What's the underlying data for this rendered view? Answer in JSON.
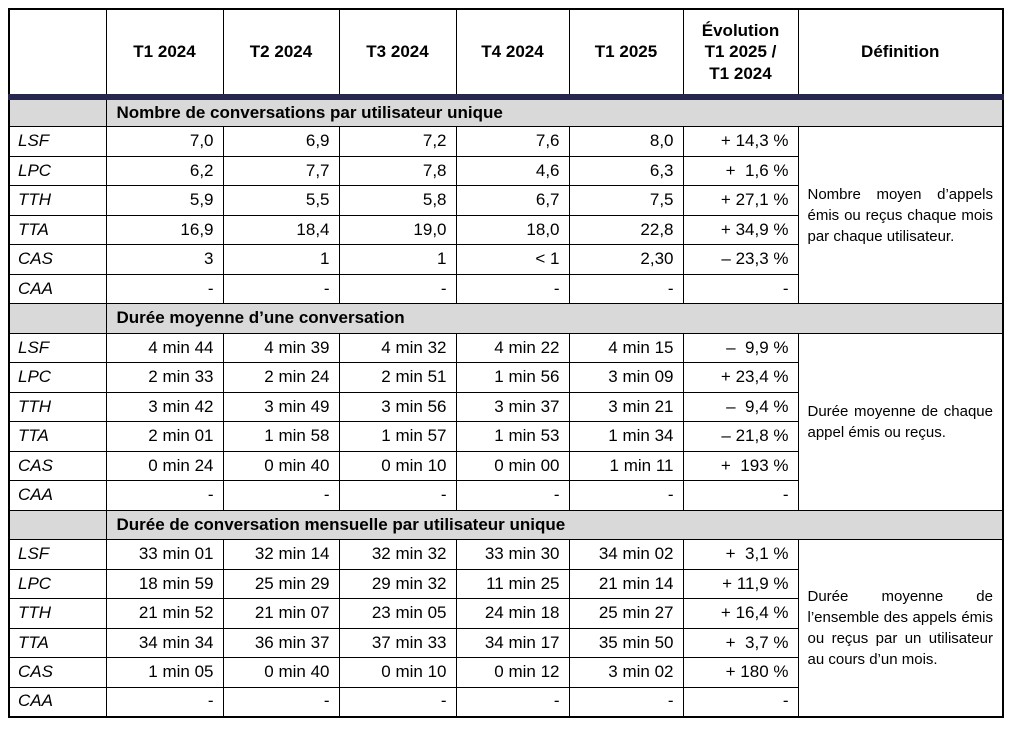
{
  "colors": {
    "header_rule_navy": "#26264E",
    "section_header_bg": "#D9D9D9",
    "border": "#000000",
    "text": "#000000",
    "background": "#FFFFFF"
  },
  "table": {
    "header": {
      "corner": "",
      "quarters": [
        "T1 2024",
        "T2 2024",
        "T3 2024",
        "T4 2024",
        "T1 2025"
      ],
      "evolution": "Évolution\nT1 2025 /\nT1 2024",
      "definition": "Définition"
    },
    "sections": [
      {
        "title": "Nombre de conversations par utilisateur unique",
        "definition": "Nombre moyen d’appels émis ou reçus chaque mois par chaque utilisateur.",
        "rows": [
          {
            "label": "LSF",
            "values": [
              "7,0",
              "6,9",
              "7,2",
              "7,6",
              "8,0",
              "+ 14,3 %"
            ]
          },
          {
            "label": "LPC",
            "values": [
              "6,2",
              "7,7",
              "7,8",
              "4,6",
              "6,3",
              "+  1,6 %"
            ]
          },
          {
            "label": "TTH",
            "values": [
              "5,9",
              "5,5",
              "5,8",
              "6,7",
              "7,5",
              "+ 27,1 %"
            ]
          },
          {
            "label": "TTA",
            "values": [
              "16,9",
              "18,4",
              "19,0",
              "18,0",
              "22,8",
              "+ 34,9 %"
            ]
          },
          {
            "label": "CAS",
            "values": [
              "3",
              "1",
              "1",
              "< 1",
              "2,30",
              "– 23,3 %"
            ]
          },
          {
            "label": "CAA",
            "values": [
              "-",
              "-",
              "-",
              "-",
              "-",
              "-"
            ]
          }
        ]
      },
      {
        "title": "Durée moyenne d’une conversation",
        "definition": "Durée moyenne de chaque appel émis ou reçus.",
        "rows": [
          {
            "label": "LSF",
            "values": [
              "4 min 44",
              "4 min 39",
              "4 min 32",
              "4 min 22",
              "4 min 15",
              "–  9,9 %"
            ]
          },
          {
            "label": "LPC",
            "values": [
              "2 min 33",
              "2 min 24",
              "2 min 51",
              "1 min 56",
              "3 min 09",
              "+ 23,4 %"
            ]
          },
          {
            "label": "TTH",
            "values": [
              "3 min 42",
              "3 min 49",
              "3 min 56",
              "3 min 37",
              "3 min 21",
              "–  9,4 %"
            ]
          },
          {
            "label": "TTA",
            "values": [
              "2 min 01",
              "1 min 58",
              "1 min 57",
              "1 min 53",
              "1 min 34",
              "– 21,8 %"
            ]
          },
          {
            "label": "CAS",
            "values": [
              "0 min 24",
              "0 min 40",
              "0 min 10",
              "0 min 00",
              "1 min 11",
              "+  193 %"
            ]
          },
          {
            "label": "CAA",
            "values": [
              "-",
              "-",
              "-",
              "-",
              "-",
              "-"
            ]
          }
        ]
      },
      {
        "title": "Durée de conversation mensuelle par utilisateur unique",
        "definition": "Durée moyenne de l’ensemble des appels émis ou reçus par un utilisateur au cours d’un mois.",
        "rows": [
          {
            "label": "LSF",
            "values": [
              "33 min 01",
              "32 min 14",
              "32 min 32",
              "33 min 30",
              "34 min 02",
              "+  3,1 %"
            ]
          },
          {
            "label": "LPC",
            "values": [
              "18 min 59",
              "25 min 29",
              "29 min 32",
              "11 min 25",
              "21 min 14",
              "+ 11,9 %"
            ]
          },
          {
            "label": "TTH",
            "values": [
              "21 min 52",
              "21 min 07",
              "23 min 05",
              "24 min 18",
              "25 min 27",
              "+ 16,4 %"
            ]
          },
          {
            "label": "TTA",
            "values": [
              "34 min 34",
              "36 min 37",
              "37 min 33",
              "34 min 17",
              "35 min 50",
              "+  3,7 %"
            ]
          },
          {
            "label": "CAS",
            "values": [
              "1 min 05",
              "0 min 40",
              "0 min 10",
              "0 min 12",
              "3 min 02",
              "+ 180 %"
            ]
          },
          {
            "label": "CAA",
            "values": [
              "-",
              "-",
              "-",
              "-",
              "-",
              "-"
            ]
          }
        ]
      }
    ]
  }
}
